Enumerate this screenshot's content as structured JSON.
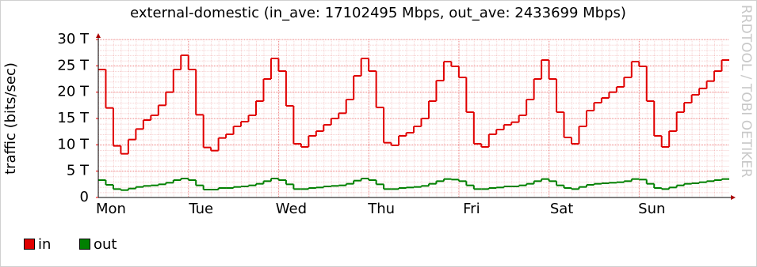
{
  "chart_data": {
    "type": "step-line",
    "title": "external-domestic (in_ave: 17102495 Mbps, out_ave: 2433699 Mbps)",
    "y_label": "traffic (bits/sec)",
    "watermark": "RRDTOOL / TOBI OETIKER",
    "xticks": [
      "Mon",
      "Tue",
      "Wed",
      "Thu",
      "Fri",
      "Sat",
      "Sun"
    ],
    "ylim": [
      0,
      30
    ],
    "yticks": [
      {
        "value": 0,
        "label": "0"
      },
      {
        "value": 5,
        "label": "5 T"
      },
      {
        "value": 10,
        "label": "10 T"
      },
      {
        "value": 15,
        "label": "15 T"
      },
      {
        "value": 20,
        "label": "20 T"
      },
      {
        "value": 25,
        "label": "25 T"
      },
      {
        "value": 30,
        "label": "30 T"
      }
    ],
    "grid": true,
    "series": [
      {
        "name": "in",
        "color": "#e00000",
        "values": [
          24.3,
          17,
          9.8,
          8.3,
          11,
          13,
          14.7,
          15.6,
          17.5,
          20,
          24.3,
          27,
          24.3,
          15.7,
          9.5,
          8.9,
          11.3,
          12,
          13.5,
          14.4,
          15.6,
          18.3,
          22.5,
          26.4,
          24,
          17.4,
          10.2,
          9.6,
          11.7,
          12.6,
          13.8,
          15,
          16,
          18.6,
          23.1,
          26.4,
          24,
          17.1,
          10.4,
          9.9,
          11.7,
          12.3,
          13.5,
          15,
          18.3,
          22.2,
          25.8,
          24.9,
          22.8,
          16.2,
          10.2,
          9.6,
          12,
          12.9,
          13.8,
          14.3,
          15.6,
          18.6,
          22.5,
          26.1,
          22.5,
          16.2,
          11.4,
          10.2,
          13.5,
          16.5,
          18,
          18.9,
          20,
          21,
          22.8,
          25.8,
          24.9,
          18.3,
          11.7,
          9.6,
          12.6,
          16.2,
          18,
          19.5,
          20.7,
          22.1,
          24,
          26.1
        ]
      },
      {
        "name": "out",
        "color": "#008000",
        "values": [
          3.3,
          2.4,
          1.6,
          1.4,
          1.7,
          2.0,
          2.2,
          2.3,
          2.5,
          2.8,
          3.3,
          3.6,
          3.3,
          2.3,
          1.5,
          1.5,
          1.8,
          1.8,
          2.0,
          2.1,
          2.3,
          2.6,
          3.1,
          3.6,
          3.3,
          2.5,
          1.6,
          1.6,
          1.8,
          1.9,
          2.1,
          2.2,
          2.3,
          2.6,
          3.2,
          3.6,
          3.3,
          2.5,
          1.6,
          1.6,
          1.8,
          1.9,
          2.0,
          2.2,
          2.6,
          3.1,
          3.5,
          3.4,
          3.1,
          2.3,
          1.6,
          1.6,
          1.8,
          1.9,
          2.1,
          2.1,
          2.3,
          2.6,
          3.1,
          3.5,
          3.1,
          2.3,
          1.8,
          1.6,
          2.0,
          2.4,
          2.6,
          2.7,
          2.8,
          2.9,
          3.1,
          3.5,
          3.4,
          2.6,
          1.8,
          1.6,
          1.9,
          2.3,
          2.6,
          2.7,
          2.9,
          3.1,
          3.3,
          3.5
        ]
      }
    ]
  }
}
